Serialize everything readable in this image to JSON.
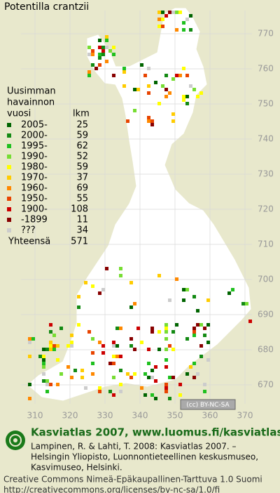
{
  "title": "Potentilla crantzii",
  "legend": {
    "heading": [
      "Uusimman",
      "havainnon",
      "vuosi"
    ],
    "count_heading": "lkm",
    "rows": [
      {
        "label": "2005-",
        "count": 25,
        "color": "#006400"
      },
      {
        "label": "2000-",
        "count": 59,
        "color": "#138a13"
      },
      {
        "label": "1995-",
        "count": 62,
        "color": "#1fc01f"
      },
      {
        "label": "1990-",
        "count": 52,
        "color": "#77dd33"
      },
      {
        "label": "1980-",
        "count": 59,
        "color": "#ffff00"
      },
      {
        "label": "1970-",
        "count": 37,
        "color": "#ffcc00"
      },
      {
        "label": "1960-",
        "count": 69,
        "color": "#ff8800"
      },
      {
        "label": "1950-",
        "count": 55,
        "color": "#e84400"
      },
      {
        "label": "1900-",
        "count": 108,
        "color": "#cc0000"
      },
      {
        "label": "-1899",
        "count": 11,
        "color": "#880000"
      },
      {
        "label": "???",
        "count": 34,
        "color": "#cccccc"
      }
    ],
    "total_label": "Yhteensä",
    "total": 571
  },
  "map": {
    "yticks": [
      770,
      760,
      750,
      740,
      730,
      720,
      710,
      700,
      690,
      680,
      670
    ],
    "xticks": [
      310,
      320,
      330,
      340,
      350,
      360,
      370
    ],
    "license_badge": "(cc) BY-NC-SA"
  },
  "footer": {
    "heading": "Kasviatlas 2007, www.luomus.fi/kasviatlas",
    "citation": [
      "Lampinen, R. & Lahti, T. 2008: Kasviatlas 2007. –",
      "Helsingin Yliopisto, Luonnontieteellinen keskusmuseo,",
      "Kasvimuseo, Helsinki."
    ],
    "license": [
      "Creative Commons Nimeä-Epäkaupallinen-Tarttuva 1.0 Suomi",
      "http://creativecommons.org/licenses/by-nc-sa/1.0/fi"
    ]
  }
}
